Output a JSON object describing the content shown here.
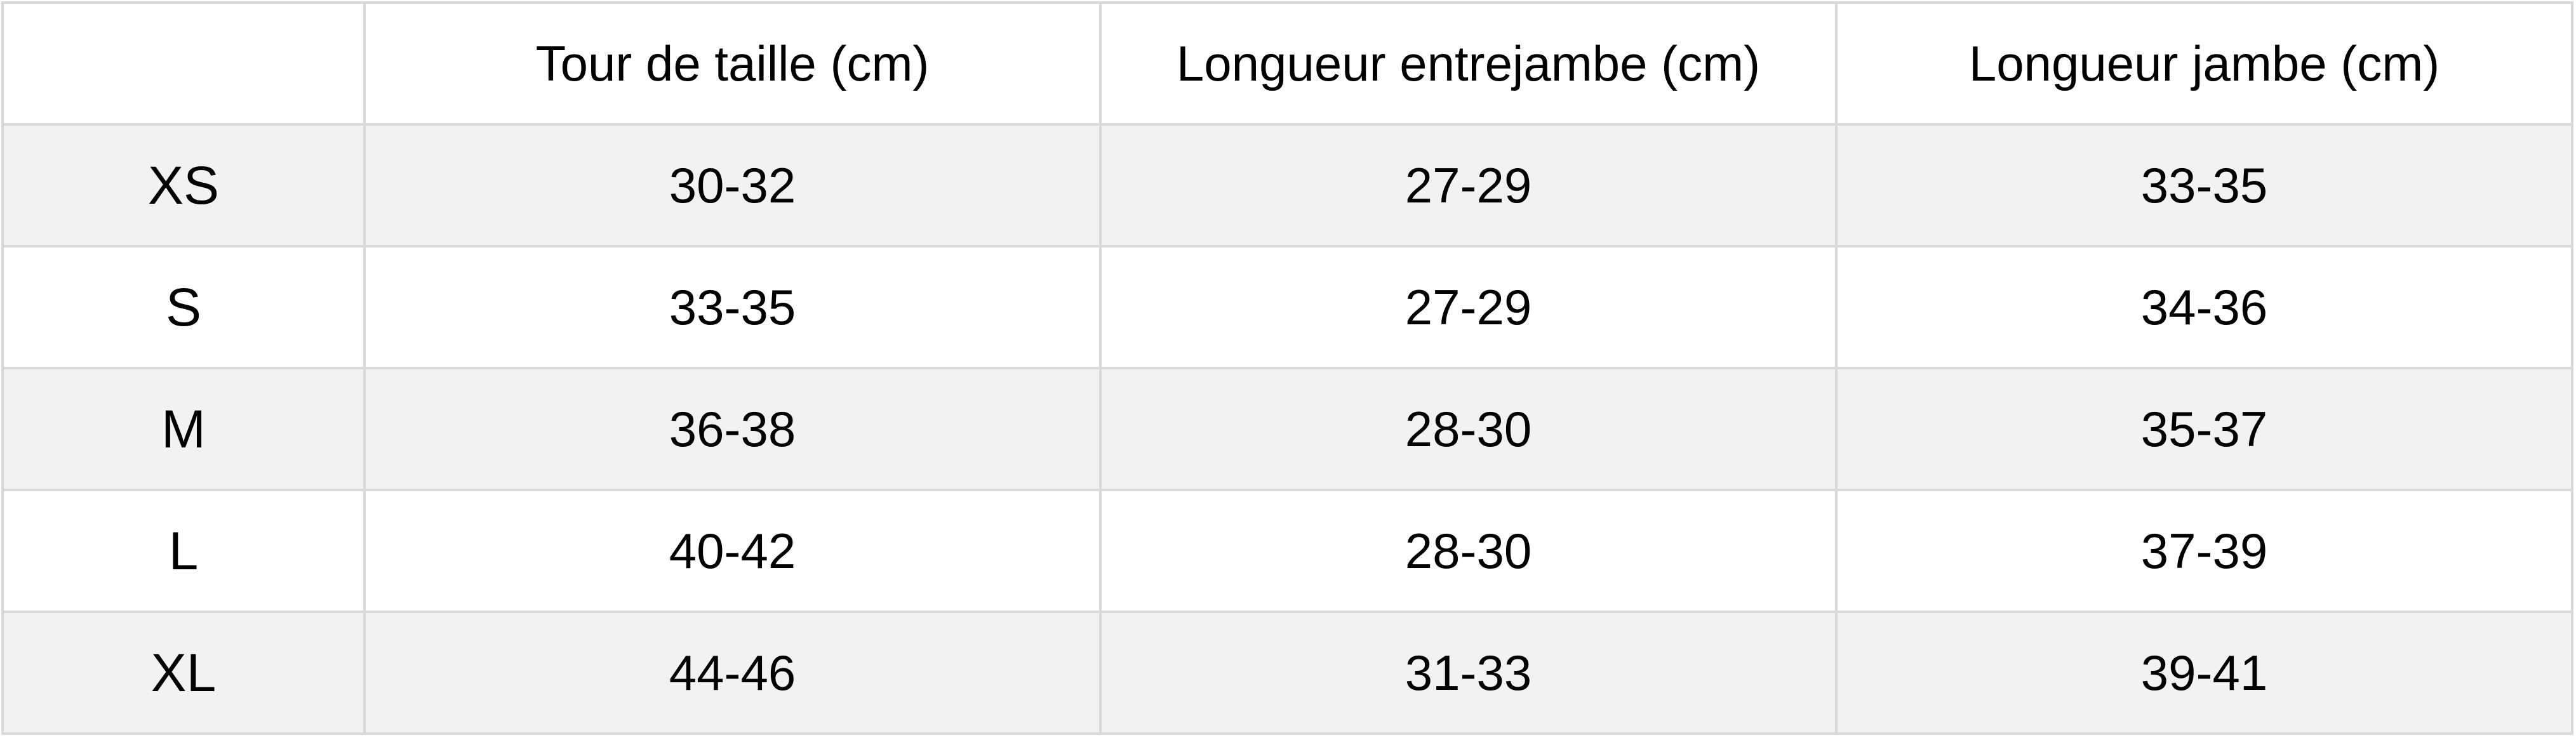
{
  "table": {
    "headers": [
      "",
      "Tour de taille (cm)",
      "Longueur entrejambe (cm)",
      "Longueur jambe (cm)"
    ],
    "rows": [
      {
        "size": "XS",
        "waist": "30-32",
        "inseam": "27-29",
        "leg": "33-35"
      },
      {
        "size": "S",
        "waist": "33-35",
        "inseam": "27-29",
        "leg": "34-36"
      },
      {
        "size": "M",
        "waist": "36-38",
        "inseam": "28-30",
        "leg": "35-37"
      },
      {
        "size": "L",
        "waist": "40-42",
        "inseam": "28-30",
        "leg": "37-39"
      },
      {
        "size": "XL",
        "waist": "44-46",
        "inseam": "31-33",
        "leg": "39-41"
      }
    ]
  },
  "colors": {
    "border": "#d9d9d9",
    "stripe": "#f2f2f2"
  }
}
